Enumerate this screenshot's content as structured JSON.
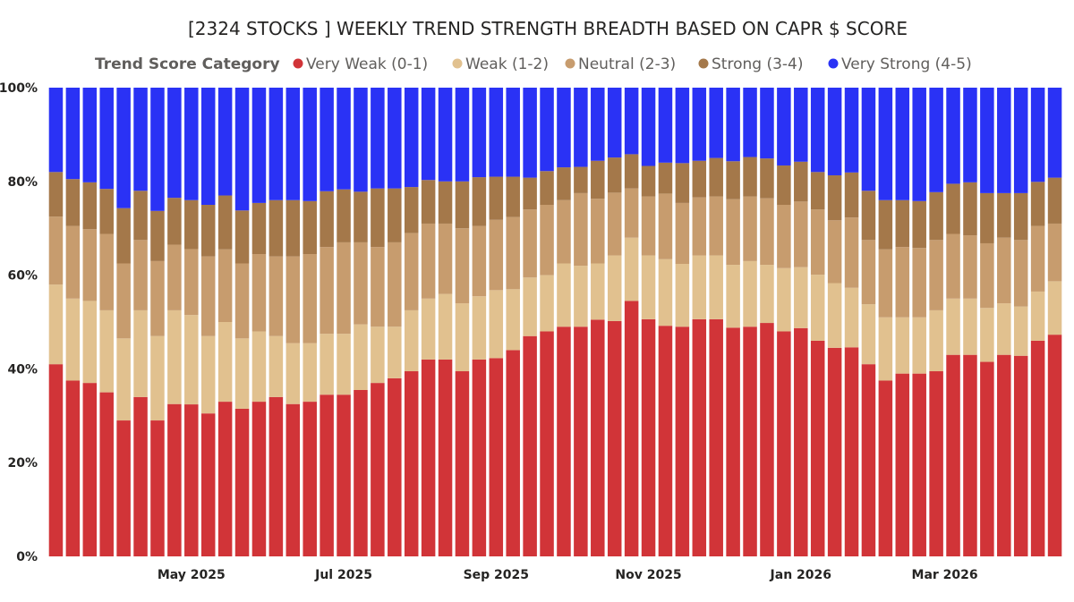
{
  "chart_data": {
    "type": "bar",
    "stacked": true,
    "normalized": true,
    "title": "[2324 STOCKS ] WEEKLY TREND STRENGTH BREADTH BASED ON CAPR $ SCORE",
    "legend_title": "Trend Score Category",
    "legend_position": "top",
    "y_ticks": [
      "100%",
      "80%",
      "60%",
      "40%",
      "20%",
      "0%"
    ],
    "ylim": [
      0,
      100
    ],
    "x_ticks": [
      {
        "label": "May 2025",
        "index": 8
      },
      {
        "label": "Jul 2025",
        "index": 17
      },
      {
        "label": "Sep 2025",
        "index": 26
      },
      {
        "label": "Nov 2025",
        "index": 35
      },
      {
        "label": "Jan 2026",
        "index": 44
      },
      {
        "label": "Mar 2026",
        "index": 52.5
      }
    ],
    "series": [
      {
        "name": "Very Weak (0-1)",
        "color": "#d13438",
        "values": [
          41,
          37.5,
          37,
          35,
          29,
          34,
          29,
          32.5,
          32.3,
          30.5,
          33,
          31.5,
          33,
          34,
          32.5,
          33,
          34.5,
          34.5,
          35.5,
          37,
          38,
          39.5,
          42,
          42,
          39.5,
          42,
          42.3,
          44,
          47,
          48,
          49,
          49,
          50.5,
          50.2,
          54.5,
          50.6,
          49.2,
          49,
          50.6,
          50.6,
          48.8,
          49,
          49.8,
          48,
          48.7,
          46,
          44.5,
          44.6,
          41,
          37.5,
          39,
          39,
          39.5,
          43,
          43,
          41.5,
          43,
          42.8,
          46,
          47.3
        ]
      },
      {
        "name": "Weak (1-2)",
        "color": "#e1c18f",
        "values": [
          17,
          17.5,
          17.5,
          17.5,
          17.5,
          18.5,
          18,
          20,
          19,
          16.5,
          17,
          15,
          15,
          13,
          13,
          12.5,
          13,
          13,
          14,
          12,
          11,
          13,
          13,
          14,
          14.5,
          13.5,
          14.5,
          13,
          12.5,
          12,
          13.5,
          13,
          12,
          14,
          13.5,
          13.6,
          14.2,
          13.4,
          13.6,
          13.6,
          13.4,
          14,
          12.4,
          13.5,
          13,
          14.1,
          13.8,
          12.7,
          12.8,
          13.5,
          12,
          12,
          13,
          12,
          12,
          11.5,
          11,
          10.5,
          10.5,
          11.4
        ]
      },
      {
        "name": "Neutral (2-3)",
        "color": "#c79c6e",
        "values": [
          14.5,
          15.5,
          15.3,
          16.3,
          16,
          15,
          16,
          14,
          14,
          17,
          15.5,
          16,
          16.5,
          17,
          18.5,
          19,
          18.5,
          19.5,
          17.5,
          17,
          18,
          16.5,
          16,
          15,
          16,
          15,
          15,
          15.4,
          14.5,
          15,
          13.5,
          15.5,
          13.8,
          13.4,
          10.5,
          12.6,
          14,
          13,
          12.4,
          12.6,
          14,
          13.8,
          14.2,
          13.5,
          14,
          13.9,
          13.4,
          15,
          13.7,
          14.5,
          15,
          14.8,
          15,
          13.8,
          13.5,
          13.8,
          14,
          14.2,
          14,
          12.3
        ]
      },
      {
        "name": "Strong (3-4)",
        "color": "#a4784a",
        "values": [
          9.5,
          10,
          10,
          9.6,
          11.8,
          10.5,
          10.7,
          10,
          10.4,
          11,
          11.5,
          11.3,
          10.9,
          12,
          12,
          11.3,
          11.9,
          11.3,
          10.8,
          12.5,
          11.5,
          9.8,
          9.3,
          9,
          10,
          10.4,
          9.2,
          8.6,
          6.8,
          7.2,
          7,
          5.6,
          8.1,
          7.5,
          7.3,
          6.5,
          6.6,
          8.5,
          7.8,
          8.2,
          8.1,
          8.4,
          8.5,
          8.4,
          8.5,
          8,
          9.6,
          9.6,
          10.5,
          10.5,
          10,
          10,
          10.2,
          10.7,
          11.3,
          10.7,
          9.5,
          10,
          9.4,
          9.8
        ]
      },
      {
        "name": "Very Strong (4-5)",
        "color": "#2a32f5",
        "values": [
          18,
          19.5,
          20.2,
          21.6,
          25.7,
          22,
          26.3,
          23.5,
          23.9,
          25,
          23,
          26.2,
          24.6,
          24,
          24,
          24.2,
          22.1,
          21.7,
          22.2,
          21.5,
          21.5,
          21.2,
          19.7,
          20,
          20,
          19.1,
          19,
          19,
          19.2,
          17.8,
          17,
          16.9,
          15.6,
          14.9,
          14.2,
          16.7,
          16,
          16.1,
          15.6,
          15,
          15.7,
          14.8,
          15.1,
          16.6,
          15.8,
          18,
          18.7,
          18.1,
          22,
          24,
          24,
          24.2,
          22.3,
          20.5,
          20.2,
          22.5,
          22.5,
          22.5,
          20.1,
          19.2
        ]
      }
    ]
  }
}
